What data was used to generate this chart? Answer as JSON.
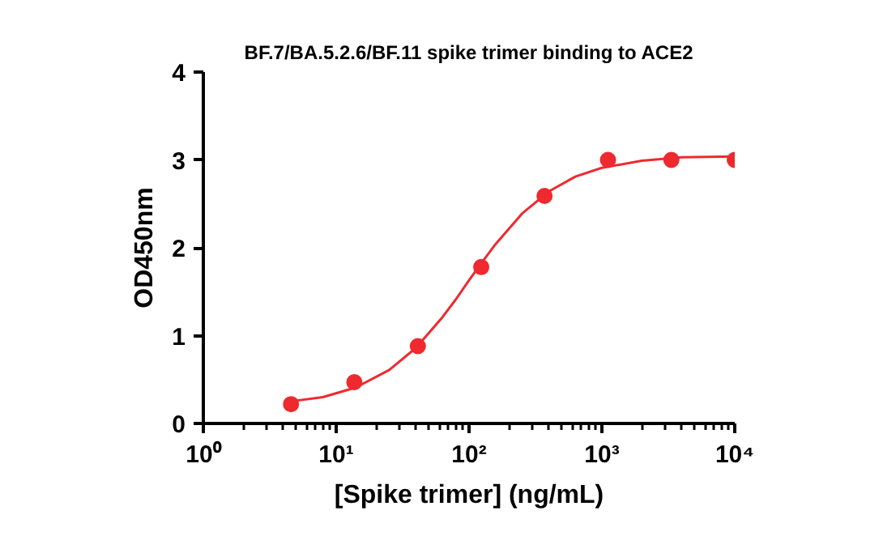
{
  "chart_data": {
    "type": "scatter",
    "title": "BF.7/BA.5.2.6/BF.11 spike trimer binding to ACE2",
    "xlabel": "[Spike trimer] (ng/mL)",
    "ylabel": "OD450nm",
    "log": "x",
    "xlim": [
      1,
      10000
    ],
    "xticks": [
      {
        "value": 1,
        "label": "10⁰"
      },
      {
        "value": 10,
        "label": "10¹"
      },
      {
        "value": 100,
        "label": "10²"
      },
      {
        "value": 1000,
        "label": "10³"
      },
      {
        "value": 10000,
        "label": "10⁴"
      }
    ],
    "ylim": [
      0,
      4
    ],
    "yticks": [
      0,
      1,
      2,
      3,
      4
    ],
    "grid": false,
    "marker": "circle",
    "series": [
      {
        "type": "line",
        "marker": "none",
        "color": "#ee2a2f",
        "x": [
          4.47,
          7.94,
          14.1,
          25.1,
          39.8,
          63.1,
          79.4,
          100,
          126,
          158,
          251,
          398,
          631,
          1000,
          1995,
          3981,
          10000
        ],
        "values": [
          0.25,
          0.3,
          0.41,
          0.61,
          0.86,
          1.21,
          1.41,
          1.63,
          1.84,
          2.04,
          2.39,
          2.64,
          2.81,
          2.91,
          2.99,
          3.03,
          3.04
        ]
      },
      {
        "color": "#ee2a2f",
        "x": [
          4.57,
          13.7,
          41.2,
          123.5,
          370,
          1111,
          3333,
          10000
        ],
        "values": [
          0.22,
          0.47,
          0.88,
          1.78,
          2.59,
          3.0,
          3.0,
          3.0
        ]
      }
    ]
  }
}
